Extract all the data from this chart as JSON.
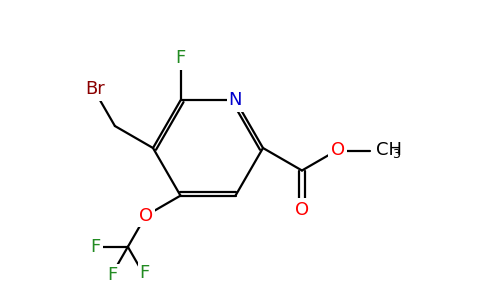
{
  "bg_color": "#ffffff",
  "atom_colors": {
    "C": "#000000",
    "N": "#0000cd",
    "O": "#ff0000",
    "F": "#228b22",
    "Br": "#8b0000"
  },
  "bond_color": "#000000",
  "figsize": [
    4.84,
    3.0
  ],
  "dpi": 100,
  "lw": 1.6,
  "fontsize": 13
}
